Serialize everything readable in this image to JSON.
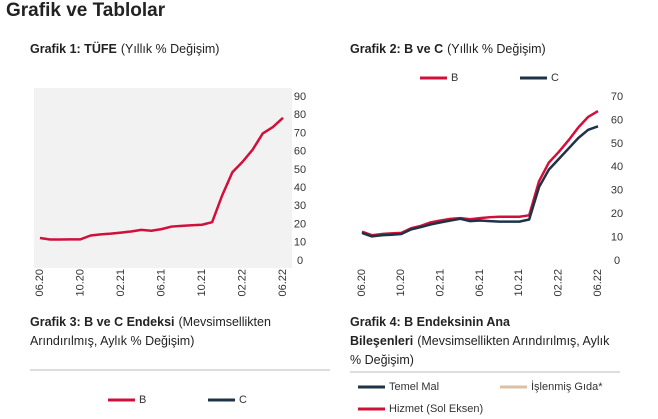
{
  "title": "Grafik ve Tablolar",
  "chart_data": [
    {
      "type": "line",
      "title": "Grafik 1: TÜFE",
      "subtitle": "(Yıllık % Değişim)",
      "categories": [
        "06.20",
        null,
        null,
        null,
        "10.20",
        null,
        null,
        null,
        "02.21",
        null,
        null,
        null,
        "06.21",
        null,
        null,
        null,
        "10.21",
        null,
        null,
        null,
        "02.22",
        null,
        null,
        null,
        "06.22"
      ],
      "series": [
        {
          "color": "#d0103a",
          "values": [
            12.6,
            11.8,
            11.8,
            11.9,
            11.9,
            14.0,
            14.6,
            15.0,
            15.6,
            16.2,
            17.1,
            16.6,
            17.5,
            18.9,
            19.3,
            19.6,
            19.9,
            21.3,
            36.1,
            48.7,
            54.4,
            61.1,
            70.0,
            73.5,
            78.6
          ]
        }
      ],
      "ylim": [
        0,
        90
      ],
      "yticks": [
        0,
        10,
        20,
        30,
        40,
        50,
        60,
        70,
        80,
        90
      ],
      "background": "#f2f2f2"
    },
    {
      "type": "line",
      "title": "Grafik 2: B ve C",
      "subtitle": "(Yıllık % Değişim)",
      "categories": [
        "06.20",
        null,
        null,
        null,
        "10.20",
        null,
        null,
        null,
        "02.21",
        null,
        null,
        null,
        "06.21",
        null,
        null,
        null,
        "10.21",
        null,
        null,
        null,
        "02.22",
        null,
        null,
        null,
        "06.22"
      ],
      "series": [
        {
          "name": "B",
          "color": "#d0103a",
          "values": [
            12.5,
            11.0,
            11.5,
            11.8,
            12.0,
            14.0,
            15.0,
            16.5,
            17.3,
            18.0,
            18.3,
            17.8,
            18.3,
            18.7,
            18.9,
            18.9,
            18.9,
            19.5,
            34.0,
            42.0,
            46.5,
            51.5,
            57.0,
            61.5,
            64.0
          ]
        },
        {
          "name": "C",
          "color": "#1f3347",
          "values": [
            12.0,
            10.5,
            11.0,
            11.2,
            11.5,
            13.5,
            14.5,
            15.6,
            16.5,
            17.3,
            18.0,
            17.0,
            17.3,
            17.0,
            16.8,
            16.8,
            16.8,
            17.7,
            31.5,
            39.0,
            43.5,
            48.0,
            52.5,
            56.0,
            57.5
          ]
        }
      ],
      "ylim": [
        0,
        70
      ],
      "yticks": [
        0,
        10,
        20,
        30,
        40,
        50,
        60,
        70
      ]
    },
    {
      "type": "legend",
      "title": "Grafik 3: B ve C Endeksi",
      "subtitle": "(Mevsimsellikten Arındırılmış, Aylık % Değişim)",
      "series": [
        {
          "name": "B",
          "color": "#d0103a"
        },
        {
          "name": "C",
          "color": "#1f3347"
        }
      ]
    },
    {
      "type": "legend",
      "title": "Grafik 4: B Endeksinin Ana Bileşenleri",
      "subtitle": "(Mevsimsellikten Arındırılmış, Aylık % Değişim)",
      "series": [
        {
          "name": "Temel Mal",
          "color": "#1f3347"
        },
        {
          "name": "İşlenmiş Gıda*",
          "color": "#dcc0a3"
        },
        {
          "name": "Hizmet (Sol Eksen)",
          "color": "#d0103a"
        }
      ]
    }
  ]
}
